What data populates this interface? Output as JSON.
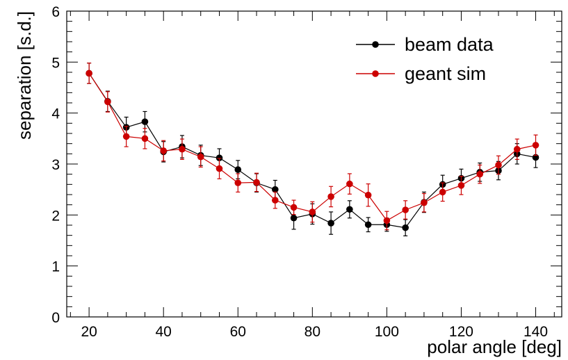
{
  "chart_data": {
    "type": "scatter",
    "title": "",
    "xlabel": "polar angle [deg]",
    "ylabel": "separation [s.d.]",
    "xlim": [
      14,
      147
    ],
    "ylim": [
      0,
      6
    ],
    "x_ticks": [
      20,
      40,
      60,
      80,
      100,
      120,
      140
    ],
    "y_ticks": [
      0,
      1,
      2,
      3,
      4,
      5,
      6
    ],
    "grid": false,
    "legend_position": "top-right",
    "series": [
      {
        "name": "beam data",
        "color": "#000000",
        "x": [
          20,
          25,
          30,
          35,
          40,
          45,
          50,
          55,
          60,
          65,
          70,
          75,
          80,
          85,
          90,
          95,
          100,
          105,
          110,
          115,
          120,
          125,
          130,
          135,
          140
        ],
        "y": [
          4.78,
          4.23,
          3.72,
          3.83,
          3.24,
          3.34,
          3.17,
          3.12,
          2.89,
          2.63,
          2.5,
          1.94,
          2.02,
          1.84,
          2.11,
          1.81,
          1.81,
          1.75,
          2.25,
          2.6,
          2.72,
          2.84,
          2.87,
          3.2,
          3.13
        ],
        "err": [
          0.2,
          0.2,
          0.2,
          0.2,
          0.2,
          0.22,
          0.2,
          0.18,
          0.18,
          0.18,
          0.18,
          0.22,
          0.2,
          0.22,
          0.17,
          0.14,
          0.13,
          0.16,
          0.2,
          0.18,
          0.18,
          0.18,
          0.18,
          0.2,
          0.2
        ]
      },
      {
        "name": "geant sim",
        "color": "#cc0000",
        "x": [
          20,
          25,
          30,
          35,
          40,
          45,
          50,
          55,
          60,
          65,
          70,
          75,
          80,
          85,
          90,
          95,
          100,
          105,
          110,
          115,
          120,
          125,
          130,
          135,
          140
        ],
        "y": [
          4.78,
          4.22,
          3.54,
          3.5,
          3.26,
          3.29,
          3.14,
          2.91,
          2.63,
          2.64,
          2.29,
          2.15,
          2.06,
          2.36,
          2.61,
          2.39,
          1.89,
          2.1,
          2.24,
          2.45,
          2.58,
          2.8,
          2.98,
          3.29,
          3.37
        ],
        "err": [
          0.2,
          0.2,
          0.2,
          0.2,
          0.2,
          0.2,
          0.2,
          0.2,
          0.18,
          0.18,
          0.16,
          0.14,
          0.2,
          0.2,
          0.2,
          0.22,
          0.18,
          0.18,
          0.18,
          0.18,
          0.18,
          0.18,
          0.18,
          0.2,
          0.2
        ]
      }
    ]
  }
}
